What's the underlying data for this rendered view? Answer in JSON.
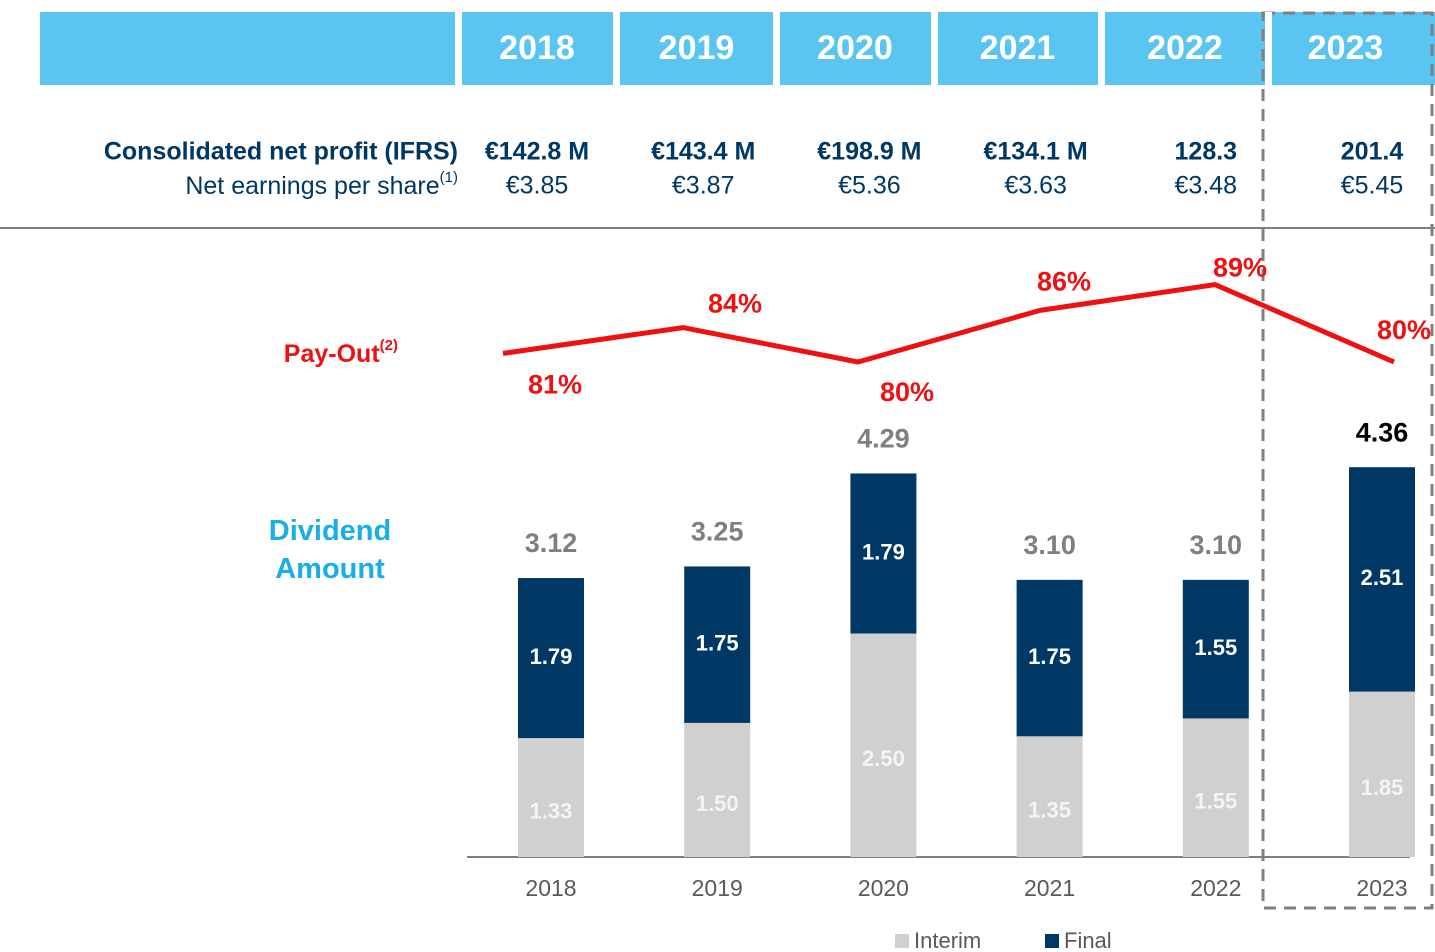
{
  "table": {
    "columns": [
      "2018",
      "2019",
      "2020",
      "2021",
      "2022",
      "2023"
    ],
    "rows": [
      {
        "label": "Consolidated net profit (IFRS)",
        "values": [
          "€142.8 M",
          "€143.4 M",
          "€198.9 M",
          "€134.1 M",
          "128.3",
          "201.4"
        ]
      },
      {
        "label": "Net earnings per share",
        "label_sup": "(1)",
        "values": [
          "€3.85",
          "€3.87",
          "€5.36",
          "€3.63",
          "€3.48",
          "€5.45"
        ]
      }
    ]
  },
  "chart_data": [
    {
      "type": "line",
      "name": "Pay-Out",
      "name_sup": "(2)",
      "color": "#ee1111",
      "categories": [
        "2018",
        "2019",
        "2020",
        "2021",
        "2022",
        "2023"
      ],
      "values": [
        81,
        84,
        80,
        86,
        89,
        80
      ],
      "value_labels": [
        "81%",
        "84%",
        "80%",
        "86%",
        "89%",
        "80%"
      ]
    },
    {
      "type": "stacked_bar",
      "title": "Dividend Amount",
      "categories": [
        "2018",
        "2019",
        "2020",
        "2021",
        "2022",
        "2023"
      ],
      "series": [
        {
          "name": "Interim",
          "color": "#d0d0d0",
          "values": [
            1.33,
            1.5,
            2.5,
            1.35,
            1.55,
            1.85
          ],
          "value_labels": [
            "1.33",
            "1.50",
            "2.50",
            "1.35",
            "1.55",
            "1.85"
          ]
        },
        {
          "name": "Final",
          "color": "#003865",
          "values": [
            1.79,
            1.75,
            1.79,
            1.75,
            1.55,
            2.51
          ],
          "value_labels": [
            "1.79",
            "1.75",
            "1.79",
            "1.75",
            "1.55",
            "2.51"
          ]
        }
      ],
      "totals": [
        3.12,
        3.25,
        4.29,
        3.1,
        3.1,
        4.36
      ],
      "total_labels": [
        "3.12",
        "3.25",
        "4.29",
        "3.10",
        "3.10",
        "4.36"
      ],
      "total_label_colors": [
        "#7f7f7f",
        "#7f7f7f",
        "#7f7f7f",
        "#7f7f7f",
        "#7f7f7f",
        "#000000"
      ]
    }
  ]
}
